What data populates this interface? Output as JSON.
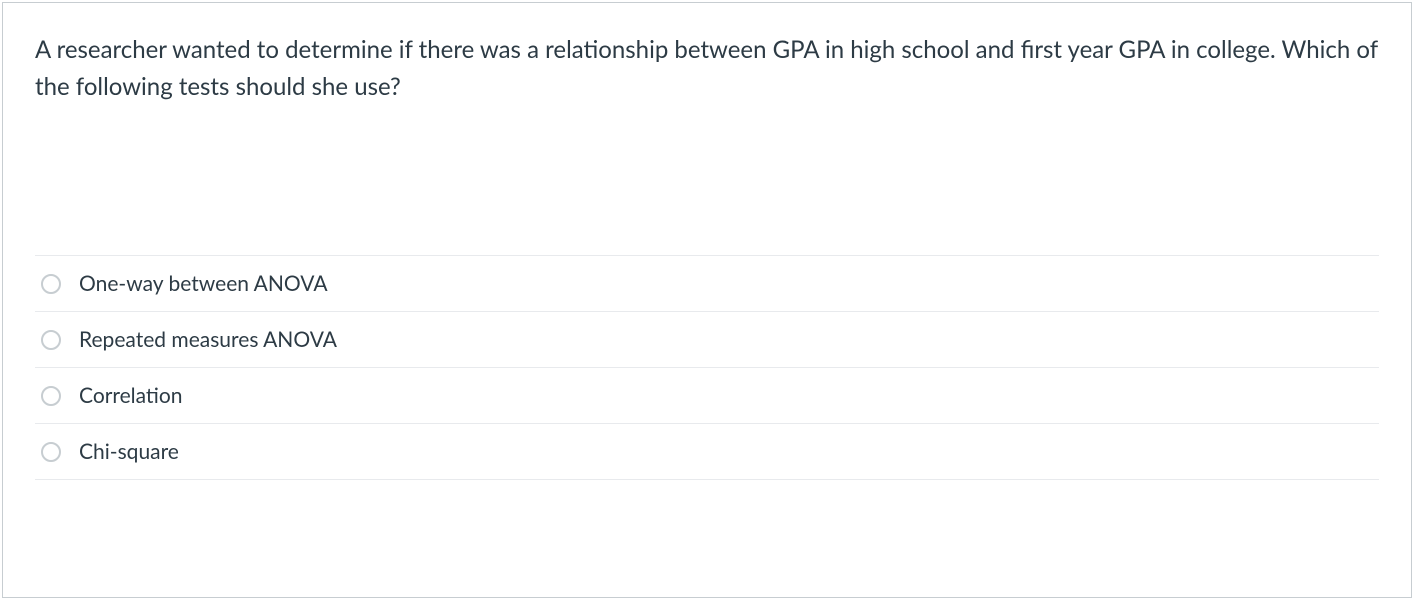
{
  "question": {
    "text": "A researcher wanted to determine if there was a relationship between GPA in high school and first year GPA in college. Which of the following tests should she use?"
  },
  "options": [
    {
      "label": "One-way between ANOVA"
    },
    {
      "label": "Repeated measures ANOVA"
    },
    {
      "label": "Correlation"
    },
    {
      "label": "Chi-square"
    }
  ],
  "styling": {
    "border_color": "#c7cdd1",
    "text_color": "#2d3b45",
    "divider_color": "#e8eaed",
    "background_color": "#ffffff",
    "question_fontsize": 24,
    "option_fontsize": 21,
    "radio_size": 20
  }
}
